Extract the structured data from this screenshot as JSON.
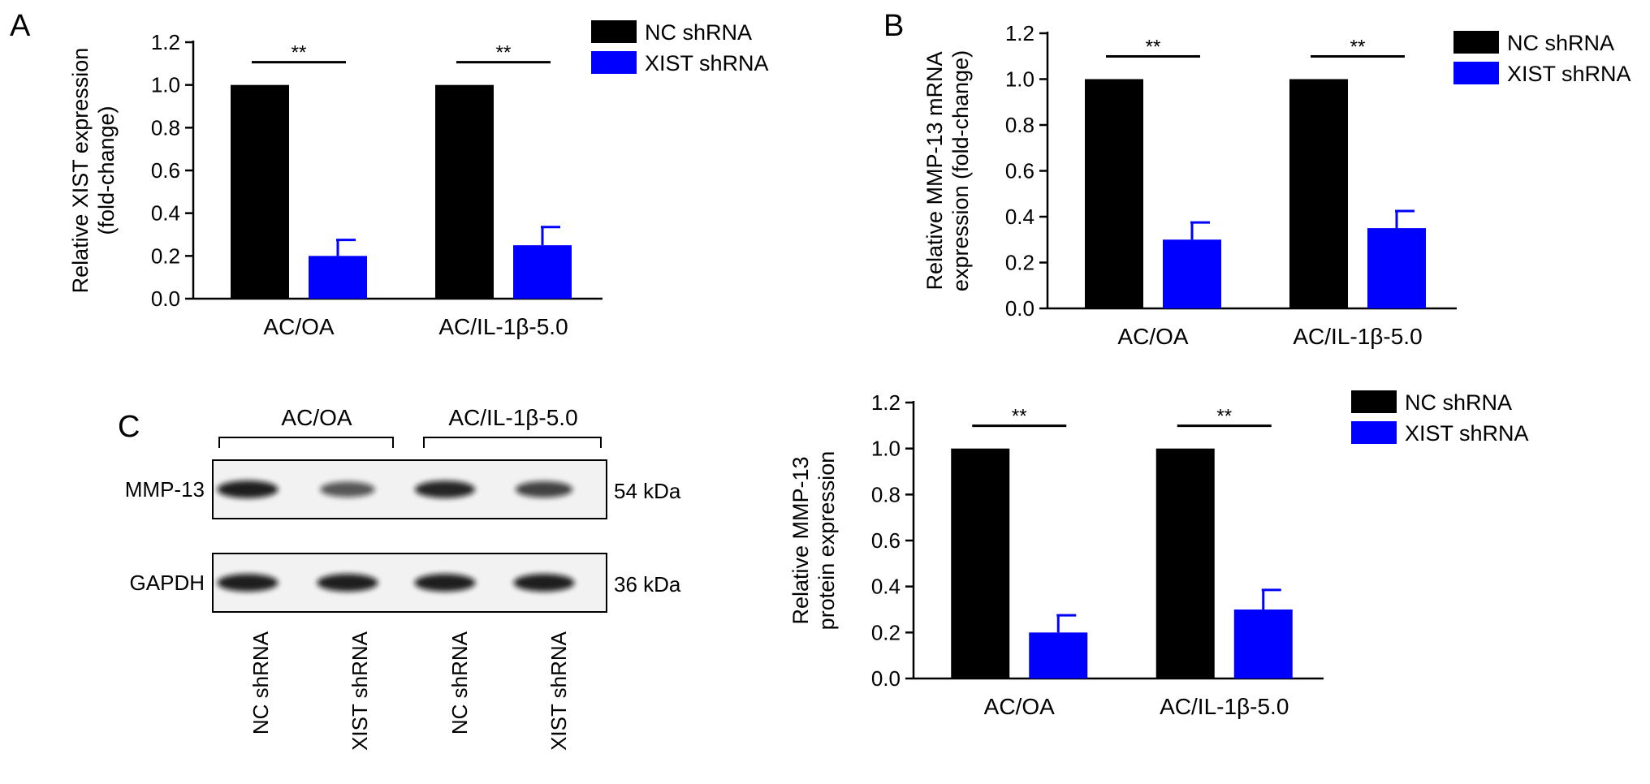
{
  "panel_letters": {
    "a": "A",
    "b": "B",
    "c": "C"
  },
  "colors": {
    "nc": "#000000",
    "xist": "#0000ff",
    "axis": "#000000"
  },
  "chart_data": [
    {
      "panel": "A",
      "type": "bar",
      "ylabel": [
        "Relative XIST expression",
        "(fold-change)"
      ],
      "ylim": [
        0,
        1.2
      ],
      "yticks": [
        "0.0",
        "0.2",
        "0.4",
        "0.6",
        "0.8",
        "1.0",
        "1.2"
      ],
      "categories": [
        "AC/OA",
        "AC/IL-1β-5.0"
      ],
      "series": [
        {
          "name": "NC shRNA",
          "values": [
            1.0,
            1.0
          ],
          "errors": [
            0,
            0
          ]
        },
        {
          "name": "XIST shRNA",
          "values": [
            0.2,
            0.25
          ],
          "errors": [
            0.075,
            0.085
          ]
        }
      ],
      "significance": [
        "**",
        "**"
      ],
      "legend": "top-right"
    },
    {
      "panel": "B",
      "type": "bar",
      "ylabel": [
        "Relative MMP-13 mRNA",
        "expression (fold-change)"
      ],
      "ylim": [
        0,
        1.2
      ],
      "yticks": [
        "0.0",
        "0.2",
        "0.4",
        "0.6",
        "0.8",
        "1.0",
        "1.2"
      ],
      "categories": [
        "AC/OA",
        "AC/IL-1β-5.0"
      ],
      "series": [
        {
          "name": "NC shRNA",
          "values": [
            1.0,
            1.0
          ],
          "errors": [
            0,
            0
          ]
        },
        {
          "name": "XIST shRNA",
          "values": [
            0.3,
            0.35
          ],
          "errors": [
            0.075,
            0.075
          ]
        }
      ],
      "significance": [
        "**",
        "**"
      ],
      "legend": "top-right"
    },
    {
      "panel": "C",
      "type": "bar",
      "ylabel": [
        "Relative MMP-13",
        "protein expression"
      ],
      "ylim": [
        0,
        1.2
      ],
      "yticks": [
        "0.0",
        "0.2",
        "0.4",
        "0.6",
        "0.8",
        "1.0",
        "1.2"
      ],
      "categories": [
        "AC/OA",
        "AC/IL-1β-5.0"
      ],
      "series": [
        {
          "name": "NC shRNA",
          "values": [
            1.0,
            1.0
          ],
          "errors": [
            0,
            0
          ]
        },
        {
          "name": "XIST shRNA",
          "values": [
            0.2,
            0.3
          ],
          "errors": [
            0.075,
            0.085
          ]
        }
      ],
      "significance": [
        "**",
        "**"
      ],
      "legend": "top-right"
    }
  ],
  "western_blot": {
    "groups": [
      "AC/OA",
      "AC/IL-1β-5.0"
    ],
    "lanes": [
      "NC shRNA",
      "XIST shRNA",
      "NC shRNA",
      "XIST shRNA"
    ],
    "rows": [
      {
        "protein": "MMP-13",
        "size": "54 kDa",
        "intensity": [
          0.95,
          0.55,
          0.9,
          0.7
        ]
      },
      {
        "protein": "GAPDH",
        "size": "36 kDa",
        "intensity": [
          0.95,
          0.95,
          0.95,
          0.95
        ]
      }
    ]
  }
}
